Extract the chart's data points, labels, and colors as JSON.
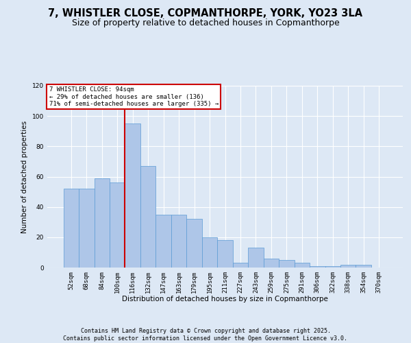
{
  "title": "7, WHISTLER CLOSE, COPMANTHORPE, YORK, YO23 3LA",
  "subtitle": "Size of property relative to detached houses in Copmanthorpe",
  "xlabel": "Distribution of detached houses by size in Copmanthorpe",
  "ylabel": "Number of detached properties",
  "categories": [
    "52sqm",
    "68sqm",
    "84sqm",
    "100sqm",
    "116sqm",
    "132sqm",
    "147sqm",
    "163sqm",
    "179sqm",
    "195sqm",
    "211sqm",
    "227sqm",
    "243sqm",
    "259sqm",
    "275sqm",
    "291sqm",
    "306sqm",
    "322sqm",
    "338sqm",
    "354sqm",
    "370sqm"
  ],
  "bar_heights": [
    52,
    52,
    59,
    56,
    95,
    67,
    35,
    35,
    32,
    20,
    18,
    3,
    13,
    6,
    5,
    3,
    1,
    1,
    2,
    2,
    0
  ],
  "red_line_x": 3.5,
  "bar_color": "#aec6e8",
  "bar_edge_color": "#5b9bd5",
  "red_line_color": "#cc0000",
  "background_color": "#dde8f5",
  "annotation_text": "7 WHISTLER CLOSE: 94sqm\n← 29% of detached houses are smaller (136)\n71% of semi-detached houses are larger (335) →",
  "annotation_box_color": "#ffffff",
  "annotation_border_color": "#cc0000",
  "footer_text": "Contains HM Land Registry data © Crown copyright and database right 2025.\nContains public sector information licensed under the Open Government Licence v3.0.",
  "ylim": [
    0,
    120
  ],
  "yticks": [
    0,
    20,
    40,
    60,
    80,
    100,
    120
  ],
  "title_fontsize": 10.5,
  "subtitle_fontsize": 9,
  "axis_label_fontsize": 7.5,
  "tick_fontsize": 6.5,
  "footer_fontsize": 6
}
